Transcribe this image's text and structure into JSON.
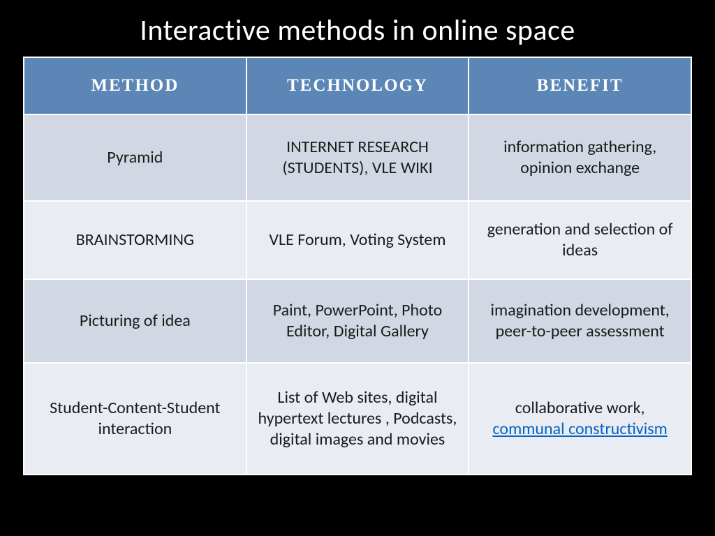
{
  "title": "Interactive methods in online space",
  "table": {
    "columns": [
      "METHOD",
      "TECHNOLOGY",
      "BENEFIT"
    ],
    "header_bg": "#5b86b6",
    "header_fg": "#ffffff",
    "row_odd_bg": "#d1d7e3",
    "row_even_bg": "#e9ecf2",
    "cell_font_size_pt": 18,
    "header_font_size_pt": 19,
    "link_color": "#0563c1",
    "rows": [
      {
        "method": "Pyramid",
        "technology": "INTERNET RESEARCH (STUDENTS), VLE WIKI",
        "benefit": "information gathering, opinion exchange"
      },
      {
        "method": "BRAINSTORMING",
        "technology": "VLE Forum, Voting System",
        "benefit": "generation and selection of ideas"
      },
      {
        "method": "Picturing of idea",
        "technology": "Paint, PowerPoint, Photo Editor, Digital Gallery",
        "benefit": "imagination development, peer-to-peer assessment"
      },
      {
        "method": "Student-Content-Student interaction",
        "technology": "List of Web sites, digital hypertext lectures , Podcasts, digital images and movies",
        "benefit_prefix": "collaborative work, ",
        "benefit_link_text": "communal constructivism"
      }
    ]
  }
}
